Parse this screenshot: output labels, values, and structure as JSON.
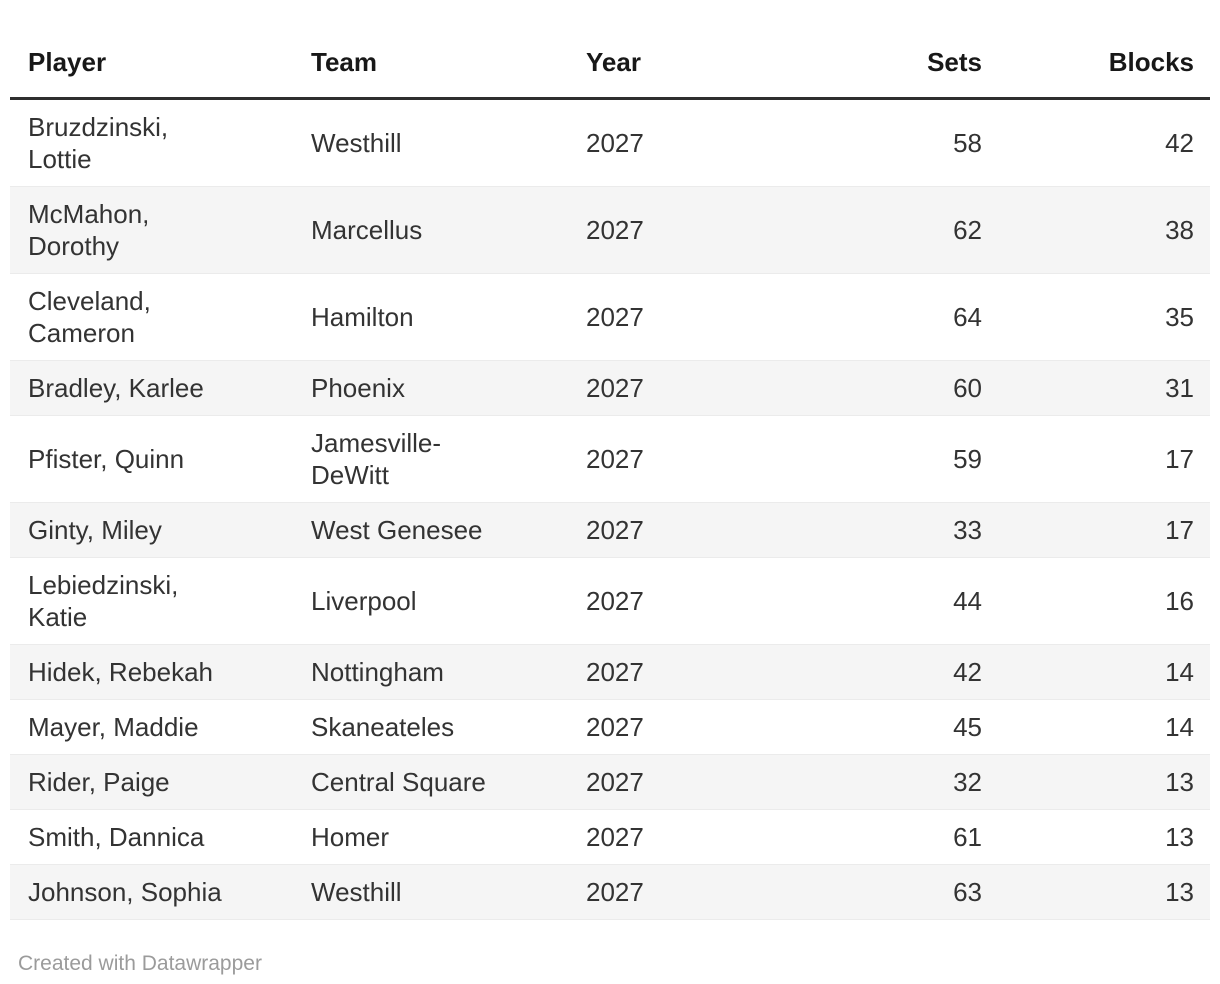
{
  "table": {
    "columns": [
      {
        "label": "Player",
        "align": "left"
      },
      {
        "label": "Team",
        "align": "left"
      },
      {
        "label": "Year",
        "align": "left"
      },
      {
        "label": "Sets",
        "align": "right"
      },
      {
        "label": "Blocks",
        "align": "right"
      }
    ],
    "rows": [
      [
        "Bruzdzinski,\nLottie",
        "Westhill",
        "2027",
        "58",
        "42"
      ],
      [
        "McMahon,\nDorothy",
        "Marcellus",
        "2027",
        "62",
        "38"
      ],
      [
        "Cleveland,\nCameron",
        "Hamilton",
        "2027",
        "64",
        "35"
      ],
      [
        "Bradley, Karlee",
        "Phoenix",
        "2027",
        "60",
        "31"
      ],
      [
        "Pfister, Quinn",
        "Jamesville-\nDeWitt",
        "2027",
        "59",
        "17"
      ],
      [
        "Ginty, Miley",
        "West Genesee",
        "2027",
        "33",
        "17"
      ],
      [
        "Lebiedzinski,\nKatie",
        "Liverpool",
        "2027",
        "44",
        "16"
      ],
      [
        "Hidek, Rebekah",
        "Nottingham",
        "2027",
        "42",
        "14"
      ],
      [
        "Mayer, Maddie",
        "Skaneateles",
        "2027",
        "45",
        "14"
      ],
      [
        "Rider, Paige",
        "Central Square",
        "2027",
        "32",
        "13"
      ],
      [
        "Smith, Dannica",
        "Homer",
        "2027",
        "61",
        "13"
      ],
      [
        "Johnson, Sophia",
        "Westhill",
        "2027",
        "63",
        "13"
      ]
    ]
  },
  "footer": {
    "credit": "Created with Datawrapper"
  },
  "colors": {
    "header_text": "#181818",
    "header_rule": "#2e2e2e",
    "body_text": "#333333",
    "stripe": "#f5f5f5",
    "row_border": "#ebebeb",
    "credit_text": "#9b9b9b",
    "background": "#ffffff"
  },
  "chart_data": {
    "type": "table",
    "title": "",
    "columns": [
      "Player",
      "Team",
      "Year",
      "Sets",
      "Blocks"
    ],
    "rows": [
      {
        "player": "Bruzdzinski, Lottie",
        "team": "Westhill",
        "year": 2027,
        "sets": 58,
        "blocks": 42
      },
      {
        "player": "McMahon, Dorothy",
        "team": "Marcellus",
        "year": 2027,
        "sets": 62,
        "blocks": 38
      },
      {
        "player": "Cleveland, Cameron",
        "team": "Hamilton",
        "year": 2027,
        "sets": 64,
        "blocks": 35
      },
      {
        "player": "Bradley, Karlee",
        "team": "Phoenix",
        "year": 2027,
        "sets": 60,
        "blocks": 31
      },
      {
        "player": "Pfister, Quinn",
        "team": "Jamesville-DeWitt",
        "year": 2027,
        "sets": 59,
        "blocks": 17
      },
      {
        "player": "Ginty, Miley",
        "team": "West Genesee",
        "year": 2027,
        "sets": 33,
        "blocks": 17
      },
      {
        "player": "Lebiedzinski, Katie",
        "team": "Liverpool",
        "year": 2027,
        "sets": 44,
        "blocks": 16
      },
      {
        "player": "Hidek, Rebekah",
        "team": "Nottingham",
        "year": 2027,
        "sets": 42,
        "blocks": 14
      },
      {
        "player": "Mayer, Maddie",
        "team": "Skaneateles",
        "year": 2027,
        "sets": 45,
        "blocks": 14
      },
      {
        "player": "Rider, Paige",
        "team": "Central Square",
        "year": 2027,
        "sets": 32,
        "blocks": 13
      },
      {
        "player": "Smith, Dannica",
        "team": "Homer",
        "year": 2027,
        "sets": 61,
        "blocks": 13
      },
      {
        "player": "Johnson, Sophia",
        "team": "Westhill",
        "year": 2027,
        "sets": 63,
        "blocks": 13
      }
    ],
    "layout_hints": {
      "striped_rows": true,
      "stripe_on": "even",
      "numeric_columns_right_aligned": [
        "Sets",
        "Blocks"
      ],
      "sorted_by": "Blocks descending"
    }
  }
}
